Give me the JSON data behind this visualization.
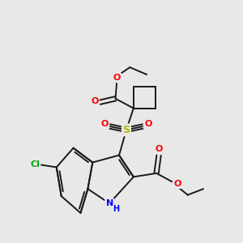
{
  "bg_color": "#e8e8e8",
  "bond_color": "#1a1a1a",
  "bond_width": 1.4,
  "atom_colors": {
    "O": "#ff0000",
    "N": "#0000ff",
    "S": "#bbbb00",
    "Cl": "#00aa00",
    "C": "#1a1a1a"
  },
  "font_size": 8.0,
  "figsize": [
    3.0,
    3.0
  ],
  "dpi": 100,
  "xlim": [
    0,
    10
  ],
  "ylim": [
    0,
    10
  ]
}
